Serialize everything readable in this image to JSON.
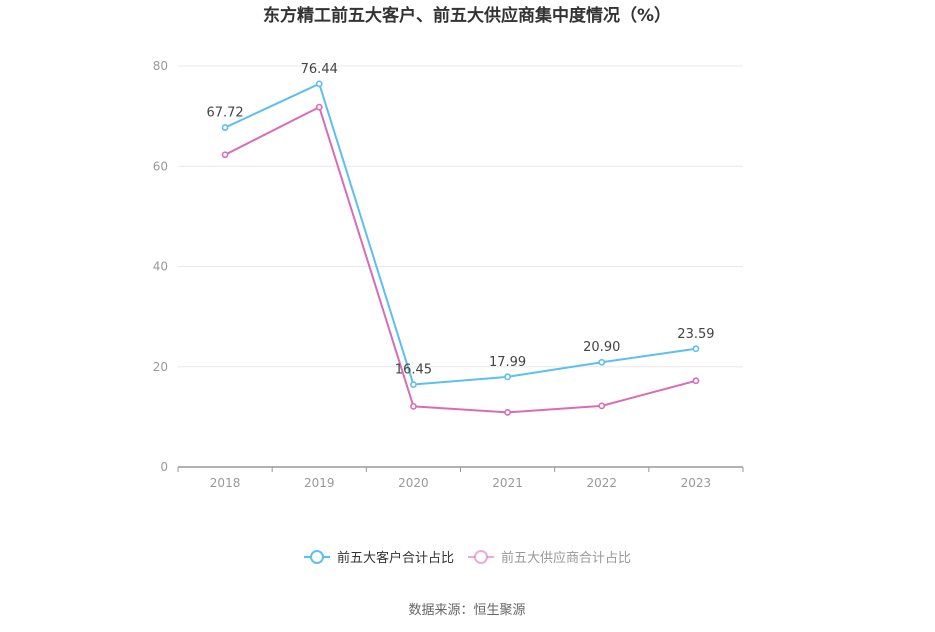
{
  "chart_data": {
    "type": "line",
    "title": "东方精工前五大客户、前五大供应商集中度情况（%）",
    "x": [
      "2018",
      "2019",
      "2020",
      "2021",
      "2022",
      "2023"
    ],
    "yticks": [
      "0",
      "20",
      "40",
      "60",
      "80"
    ],
    "ylim": [
      0,
      80
    ],
    "grid": true,
    "legend_position": "bottom",
    "series": [
      {
        "name": "前五大客户合计占比",
        "color": "#5bc0f0",
        "values": [
          67.72,
          76.44,
          16.45,
          17.99,
          20.9,
          23.59
        ],
        "labels": [
          "67.72",
          "76.44",
          "16.45",
          "17.99",
          "20.90",
          "23.59"
        ]
      },
      {
        "name": "前五大供应商合计占比",
        "color": "#d96cb4",
        "values": [
          62.3,
          71.8,
          12.1,
          10.9,
          12.2,
          17.2
        ]
      }
    ],
    "source": "数据来源：恒生聚源"
  }
}
